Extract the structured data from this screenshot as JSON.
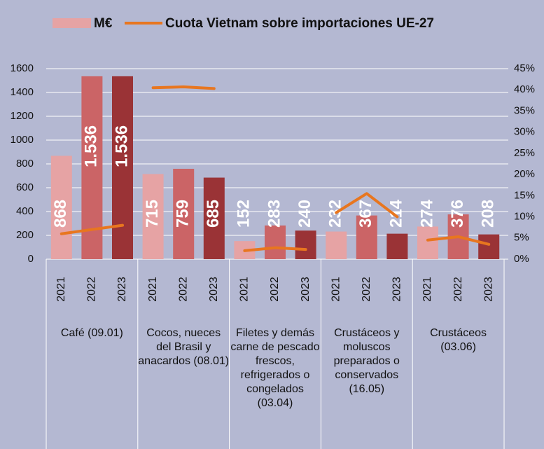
{
  "chart_data": {
    "type": "bar",
    "categories": [
      "2021",
      "2022",
      "2023",
      "2021",
      "2022",
      "2023",
      "2021",
      "2022",
      "2023",
      "2021",
      "2022",
      "2023",
      "2021",
      "2022",
      "2023"
    ],
    "groups": [
      "Café (09.01)",
      "Cocos, nueces del Brasil y anacardos (08.01)",
      "Filetes y demás carne de pescado frescos, refrigerados o congelados (03.04)",
      "Crustáceos y moluscos preparados o conservados (16.05)",
      "Crustáceos (03.06)"
    ],
    "bar_colors": [
      "#e6a3a4",
      "#cb6466",
      "#9a3336"
    ],
    "series": [
      {
        "name": "M€",
        "color": "#e6a3a4",
        "type": "bar",
        "values": [
          868,
          1536,
          1536,
          715,
          759,
          685,
          152,
          283,
          240,
          232,
          367,
          214,
          274,
          376,
          208
        ],
        "value_labels": [
          "868",
          "1.536",
          "1.536",
          "715",
          "759",
          "685",
          "152",
          "283",
          "240",
          "232",
          "367",
          "214",
          "274",
          "376",
          "208"
        ]
      },
      {
        "name": "Cuota Vietnam sobre importaciones UE-27",
        "color": "#e8761f",
        "type": "line",
        "axis": "y2",
        "values": [
          6,
          7,
          8,
          40.5,
          40.7,
          40.3,
          2,
          2.7,
          2.3,
          11,
          15.5,
          10,
          4.5,
          5.3,
          3.5
        ]
      }
    ],
    "ylim": [
      0,
      1600
    ],
    "yticks": [
      0,
      200,
      400,
      600,
      800,
      1000,
      1200,
      1400,
      1600
    ],
    "y2lim": [
      0,
      45
    ],
    "y2ticks": [
      {
        "value": 0,
        "label": "0%"
      },
      {
        "value": 5,
        "label": "5%"
      },
      {
        "value": 10,
        "label": "10%"
      },
      {
        "value": 15,
        "label": "15%"
      },
      {
        "value": 20,
        "label": "20%"
      },
      {
        "value": 25,
        "label": "25%"
      },
      {
        "value": 30,
        "label": "30%"
      },
      {
        "value": 35,
        "label": "35%"
      },
      {
        "value": 40,
        "label": "40%"
      },
      {
        "value": 45,
        "label": "45%"
      }
    ],
    "grid": true,
    "legend": "top"
  }
}
